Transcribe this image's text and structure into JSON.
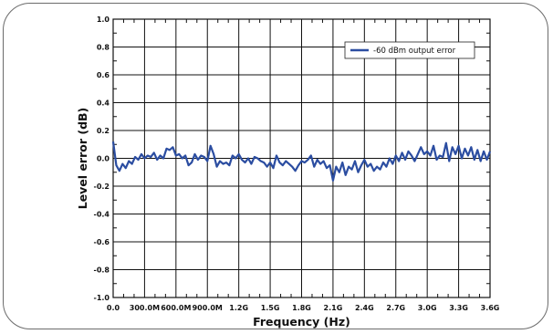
{
  "chart_data": {
    "type": "line",
    "title": "",
    "xlabel": "Frequency (Hz)",
    "ylabel": "Level error (dB)",
    "xlim": [
      0,
      3600000000
    ],
    "ylim": [
      -1.0,
      1.0
    ],
    "grid": true,
    "legend_position": "top-right",
    "x_ticks": [
      {
        "value": 0,
        "label": "0.0"
      },
      {
        "value": 300000000,
        "label": "300.0M"
      },
      {
        "value": 600000000,
        "label": "600.0M"
      },
      {
        "value": 900000000,
        "label": "900.0M"
      },
      {
        "value": 1200000000,
        "label": "1.2G"
      },
      {
        "value": 1500000000,
        "label": "1.5G"
      },
      {
        "value": 1800000000,
        "label": "1.8G"
      },
      {
        "value": 2100000000,
        "label": "2.1G"
      },
      {
        "value": 2400000000,
        "label": "2.4G"
      },
      {
        "value": 2700000000,
        "label": "2.7G"
      },
      {
        "value": 3000000000,
        "label": "3.0G"
      },
      {
        "value": 3300000000,
        "label": "3.3G"
      },
      {
        "value": 3600000000,
        "label": "3.6G"
      }
    ],
    "y_ticks": [
      {
        "value": 1.0,
        "label": "1.0"
      },
      {
        "value": 0.8,
        "label": "0.8"
      },
      {
        "value": 0.6,
        "label": "0.6"
      },
      {
        "value": 0.4,
        "label": "0.4"
      },
      {
        "value": 0.2,
        "label": "0.2"
      },
      {
        "value": 0.0,
        "label": "0.0"
      },
      {
        "value": -0.2,
        "label": "-0.2"
      },
      {
        "value": -0.4,
        "label": "-0.4"
      },
      {
        "value": -0.6,
        "label": "-0.6"
      },
      {
        "value": -0.8,
        "label": "-0.8"
      },
      {
        "value": -1.0,
        "label": "-1.0"
      }
    ],
    "series": [
      {
        "name": "-60 dBm output error",
        "color": "#2b4da1",
        "points": [
          [
            0,
            0.12
          ],
          [
            30000000,
            -0.05
          ],
          [
            60000000,
            -0.09
          ],
          [
            90000000,
            -0.04
          ],
          [
            120000000,
            -0.07
          ],
          [
            150000000,
            -0.02
          ],
          [
            180000000,
            -0.04
          ],
          [
            210000000,
            0.01
          ],
          [
            240000000,
            -0.01
          ],
          [
            270000000,
            0.03
          ],
          [
            300000000,
            0.0
          ],
          [
            330000000,
            0.02
          ],
          [
            360000000,
            0.01
          ],
          [
            390000000,
            0.04
          ],
          [
            420000000,
            -0.01
          ],
          [
            450000000,
            0.02
          ],
          [
            480000000,
            0.0
          ],
          [
            510000000,
            0.07
          ],
          [
            540000000,
            0.06
          ],
          [
            570000000,
            0.08
          ],
          [
            600000000,
            0.02
          ],
          [
            630000000,
            0.03
          ],
          [
            660000000,
            0.0
          ],
          [
            690000000,
            0.02
          ],
          [
            720000000,
            -0.05
          ],
          [
            750000000,
            -0.03
          ],
          [
            780000000,
            0.03
          ],
          [
            810000000,
            -0.01
          ],
          [
            840000000,
            0.02
          ],
          [
            870000000,
            0.01
          ],
          [
            900000000,
            -0.02
          ],
          [
            930000000,
            0.09
          ],
          [
            960000000,
            0.03
          ],
          [
            990000000,
            -0.06
          ],
          [
            1020000000,
            -0.02
          ],
          [
            1050000000,
            -0.04
          ],
          [
            1080000000,
            -0.03
          ],
          [
            1110000000,
            -0.05
          ],
          [
            1140000000,
            0.02
          ],
          [
            1170000000,
            0.0
          ],
          [
            1200000000,
            0.03
          ],
          [
            1230000000,
            -0.01
          ],
          [
            1260000000,
            -0.03
          ],
          [
            1290000000,
            0.0
          ],
          [
            1320000000,
            -0.04
          ],
          [
            1350000000,
            0.01
          ],
          [
            1380000000,
            0.0
          ],
          [
            1410000000,
            -0.02
          ],
          [
            1440000000,
            -0.03
          ],
          [
            1470000000,
            -0.06
          ],
          [
            1500000000,
            -0.03
          ],
          [
            1530000000,
            -0.07
          ],
          [
            1560000000,
            0.02
          ],
          [
            1590000000,
            -0.03
          ],
          [
            1620000000,
            -0.05
          ],
          [
            1650000000,
            -0.02
          ],
          [
            1680000000,
            -0.04
          ],
          [
            1710000000,
            -0.06
          ],
          [
            1740000000,
            -0.09
          ],
          [
            1770000000,
            -0.05
          ],
          [
            1800000000,
            -0.02
          ],
          [
            1830000000,
            -0.03
          ],
          [
            1860000000,
            -0.01
          ],
          [
            1890000000,
            0.02
          ],
          [
            1920000000,
            -0.06
          ],
          [
            1950000000,
            -0.01
          ],
          [
            1980000000,
            -0.04
          ],
          [
            2010000000,
            -0.02
          ],
          [
            2040000000,
            -0.07
          ],
          [
            2070000000,
            -0.05
          ],
          [
            2100000000,
            -0.16
          ],
          [
            2130000000,
            -0.06
          ],
          [
            2160000000,
            -0.1
          ],
          [
            2190000000,
            -0.03
          ],
          [
            2220000000,
            -0.12
          ],
          [
            2250000000,
            -0.06
          ],
          [
            2280000000,
            -0.08
          ],
          [
            2310000000,
            -0.02
          ],
          [
            2340000000,
            -0.1
          ],
          [
            2370000000,
            -0.05
          ],
          [
            2400000000,
            -0.01
          ],
          [
            2430000000,
            -0.06
          ],
          [
            2460000000,
            -0.04
          ],
          [
            2490000000,
            -0.09
          ],
          [
            2520000000,
            -0.06
          ],
          [
            2550000000,
            -0.08
          ],
          [
            2580000000,
            -0.03
          ],
          [
            2610000000,
            -0.06
          ],
          [
            2640000000,
            0.0
          ],
          [
            2670000000,
            -0.04
          ],
          [
            2700000000,
            0.02
          ],
          [
            2730000000,
            -0.02
          ],
          [
            2760000000,
            0.04
          ],
          [
            2790000000,
            -0.01
          ],
          [
            2820000000,
            0.05
          ],
          [
            2850000000,
            0.02
          ],
          [
            2880000000,
            -0.02
          ],
          [
            2910000000,
            0.03
          ],
          [
            2940000000,
            0.08
          ],
          [
            2970000000,
            0.03
          ],
          [
            3000000000,
            0.05
          ],
          [
            3030000000,
            0.02
          ],
          [
            3060000000,
            0.09
          ],
          [
            3090000000,
            -0.01
          ],
          [
            3120000000,
            0.02
          ],
          [
            3150000000,
            0.01
          ],
          [
            3180000000,
            0.11
          ],
          [
            3210000000,
            -0.02
          ],
          [
            3240000000,
            0.08
          ],
          [
            3270000000,
            0.03
          ],
          [
            3300000000,
            0.09
          ],
          [
            3330000000,
            0.0
          ],
          [
            3360000000,
            0.07
          ],
          [
            3390000000,
            0.02
          ],
          [
            3420000000,
            0.08
          ],
          [
            3450000000,
            -0.01
          ],
          [
            3480000000,
            0.06
          ],
          [
            3510000000,
            -0.02
          ],
          [
            3540000000,
            0.05
          ],
          [
            3570000000,
            -0.01
          ],
          [
            3600000000,
            0.05
          ]
        ]
      }
    ]
  }
}
